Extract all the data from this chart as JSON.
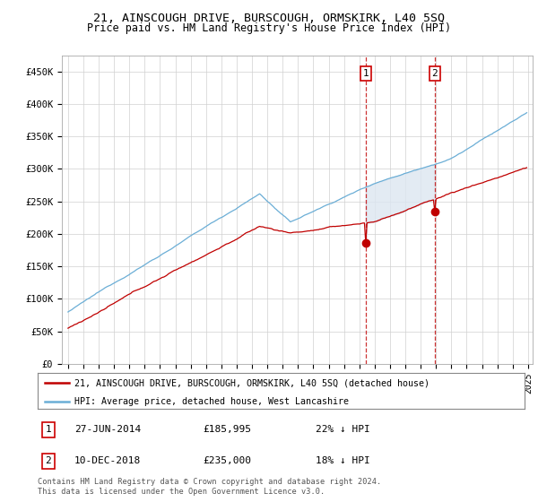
{
  "title": "21, AINSCOUGH DRIVE, BURSCOUGH, ORMSKIRK, L40 5SQ",
  "subtitle": "Price paid vs. HM Land Registry's House Price Index (HPI)",
  "ylim": [
    0,
    475000
  ],
  "yticks": [
    0,
    50000,
    100000,
    150000,
    200000,
    250000,
    300000,
    350000,
    400000,
    450000
  ],
  "ytick_labels": [
    "£0",
    "£50K",
    "£100K",
    "£150K",
    "£200K",
    "£250K",
    "£300K",
    "£350K",
    "£400K",
    "£450K"
  ],
  "x_start_year": 1995,
  "x_end_year": 2025,
  "purchase1_year": 2014,
  "purchase1_month": 6,
  "purchase1_price": 185995,
  "purchase2_year": 2018,
  "purchase2_month": 12,
  "purchase2_price": 235000,
  "hpi_color": "#6baed6",
  "price_color": "#c00000",
  "shade_color": "#dce6f1",
  "legend_line1": "21, AINSCOUGH DRIVE, BURSCOUGH, ORMSKIRK, L40 5SQ (detached house)",
  "legend_line2": "HPI: Average price, detached house, West Lancashire",
  "ann1_date": "27-JUN-2014",
  "ann1_price": "£185,995",
  "ann1_hpi": "22% ↓ HPI",
  "ann2_date": "10-DEC-2018",
  "ann2_price": "£235,000",
  "ann2_hpi": "18% ↓ HPI",
  "footer": "Contains HM Land Registry data © Crown copyright and database right 2024.\nThis data is licensed under the Open Government Licence v3.0.",
  "bg_color": "#ffffff"
}
